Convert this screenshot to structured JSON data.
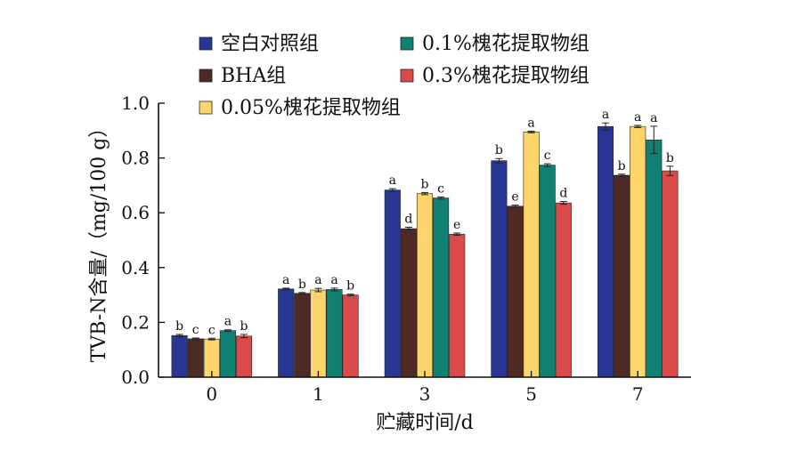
{
  "chart_data": {
    "type": "bar",
    "xlabel": "贮藏时间/d",
    "ylabel": "TVB-N含量/（mg/100 g）",
    "categories": [
      "0",
      "1",
      "3",
      "5",
      "7"
    ],
    "ylim": [
      0,
      1.0
    ],
    "yticks": [
      "0.0",
      "0.2",
      "0.4",
      "0.6",
      "0.8",
      "1.0"
    ],
    "legend_position": "top",
    "series": [
      {
        "name": "空白对照组",
        "color": "#283593",
        "values": [
          0.152,
          0.322,
          0.683,
          0.79,
          0.915
        ],
        "errors": [
          0.004,
          0.003,
          0.005,
          0.008,
          0.013
        ],
        "labels": [
          "b",
          "a",
          "a",
          "b",
          "a"
        ]
      },
      {
        "name": "BHA组",
        "color": "#4e2a24",
        "values": [
          0.14,
          0.306,
          0.542,
          0.624,
          0.737
        ],
        "errors": [
          0.003,
          0.003,
          0.005,
          0.004,
          0.004
        ],
        "labels": [
          "c",
          "b",
          "d",
          "e",
          "b"
        ]
      },
      {
        "name": "0.05%槐花提取物组",
        "color": "#fdd56a",
        "values": [
          0.139,
          0.318,
          0.67,
          0.895,
          0.915
        ],
        "errors": [
          0.003,
          0.006,
          0.004,
          0.003,
          0.004
        ],
        "labels": [
          "c",
          "a",
          "b",
          "a",
          "a"
        ]
      },
      {
        "name": "0.1%槐花提取物组",
        "color": "#108072",
        "values": [
          0.17,
          0.32,
          0.654,
          0.774,
          0.866
        ],
        "errors": [
          0.003,
          0.005,
          0.004,
          0.005,
          0.05
        ],
        "labels": [
          "a",
          "a",
          "c",
          "c",
          "a"
        ]
      },
      {
        "name": "0.3%槐花提取物组",
        "color": "#d94a4a",
        "values": [
          0.15,
          0.3,
          0.522,
          0.636,
          0.753
        ],
        "errors": [
          0.006,
          0.003,
          0.004,
          0.005,
          0.017
        ],
        "labels": [
          "b",
          "b",
          "e",
          "d",
          "b"
        ]
      }
    ]
  }
}
